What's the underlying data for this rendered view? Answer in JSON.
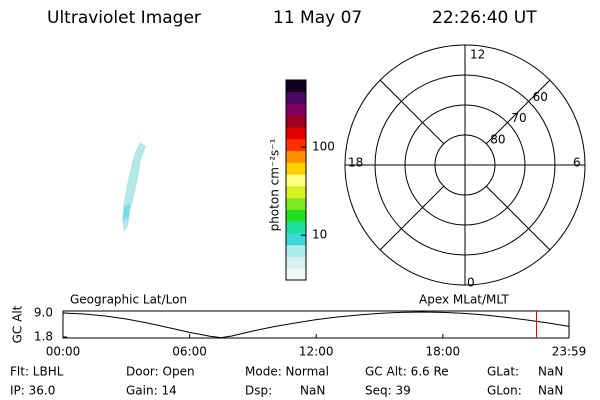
{
  "header": {
    "title": "Ultraviolet Imager",
    "date": "11 May 07",
    "time": "22:26:40 UT"
  },
  "colorbar": {
    "label": "photon cm⁻²s⁻¹",
    "log": true,
    "clim": [
      3.1,
      576
    ],
    "ticks": [
      10,
      100
    ],
    "colors": [
      "#f4f8f8",
      "#d8f0f0",
      "#a8ecec",
      "#40d8d8",
      "#20e0a0",
      "#20e020",
      "#80e820",
      "#d8f020",
      "#ffff80",
      "#ffd000",
      "#ff9000",
      "#ff3000",
      "#e00000",
      "#a00020",
      "#800060",
      "#4a0860",
      "#100020"
    ]
  },
  "polar": {
    "rlim": [
      90,
      50
    ],
    "rticks": [
      80,
      70,
      60
    ],
    "mlt_labels": {
      "top": "12",
      "left": "18",
      "right": "6",
      "bottom": "0"
    }
  },
  "chart_data": {
    "type": "line",
    "ylabel": "GC Alt",
    "left_label": "Geographic Lat/Lon",
    "right_label": "Apex MLat/MLT",
    "x": [
      0,
      1,
      2,
      3,
      4,
      5,
      6,
      7,
      7.5,
      8,
      9,
      10,
      11,
      12,
      13,
      14,
      15,
      16,
      17,
      18,
      19,
      20,
      21,
      22,
      23,
      23.98
    ],
    "series": [
      {
        "color": "#000000",
        "values": [
          9.0,
          8.7,
          8.1,
          7.2,
          6.0,
          4.6,
          3.2,
          2.0,
          1.6,
          2.1,
          3.6,
          4.9,
          6.0,
          7.0,
          7.8,
          8.4,
          8.9,
          9.2,
          9.3,
          9.2,
          8.9,
          8.4,
          7.7,
          6.9,
          6.0,
          5.0
        ]
      }
    ],
    "marker_x": 22.44,
    "marker_color": "#e00000",
    "xlim": [
      0,
      23.98
    ],
    "ylim": [
      1.5,
      9.6
    ],
    "xticks": [
      {
        "value": 0,
        "label": "00:00"
      },
      {
        "value": 6,
        "label": "06:00"
      },
      {
        "value": 12,
        "label": "12:00"
      },
      {
        "value": 18,
        "label": "18:00"
      },
      {
        "value": 23.98,
        "label": "23:59"
      }
    ],
    "yticks": [
      {
        "value": 1.8,
        "label": "1.8"
      },
      {
        "value": 9.0,
        "label": "9.0"
      }
    ]
  },
  "info": {
    "rows": [
      [
        {
          "text": "Flt: LBHL"
        },
        {
          "text": "Door: Open"
        },
        {
          "text": "Mode: Normal"
        },
        {
          "text": "GC Alt: 6.6 Re"
        },
        {
          "text": "GLat:"
        },
        {
          "text": "NaN"
        }
      ],
      [
        {
          "text": "IP: 36.0"
        },
        {
          "text": "Gain: 14"
        },
        {
          "text": "Dsp:"
        },
        {
          "text": "NaN"
        },
        {
          "text": "Seq: 39"
        },
        {
          "text": "GLon:"
        },
        {
          "text": "NaN"
        }
      ]
    ]
  }
}
